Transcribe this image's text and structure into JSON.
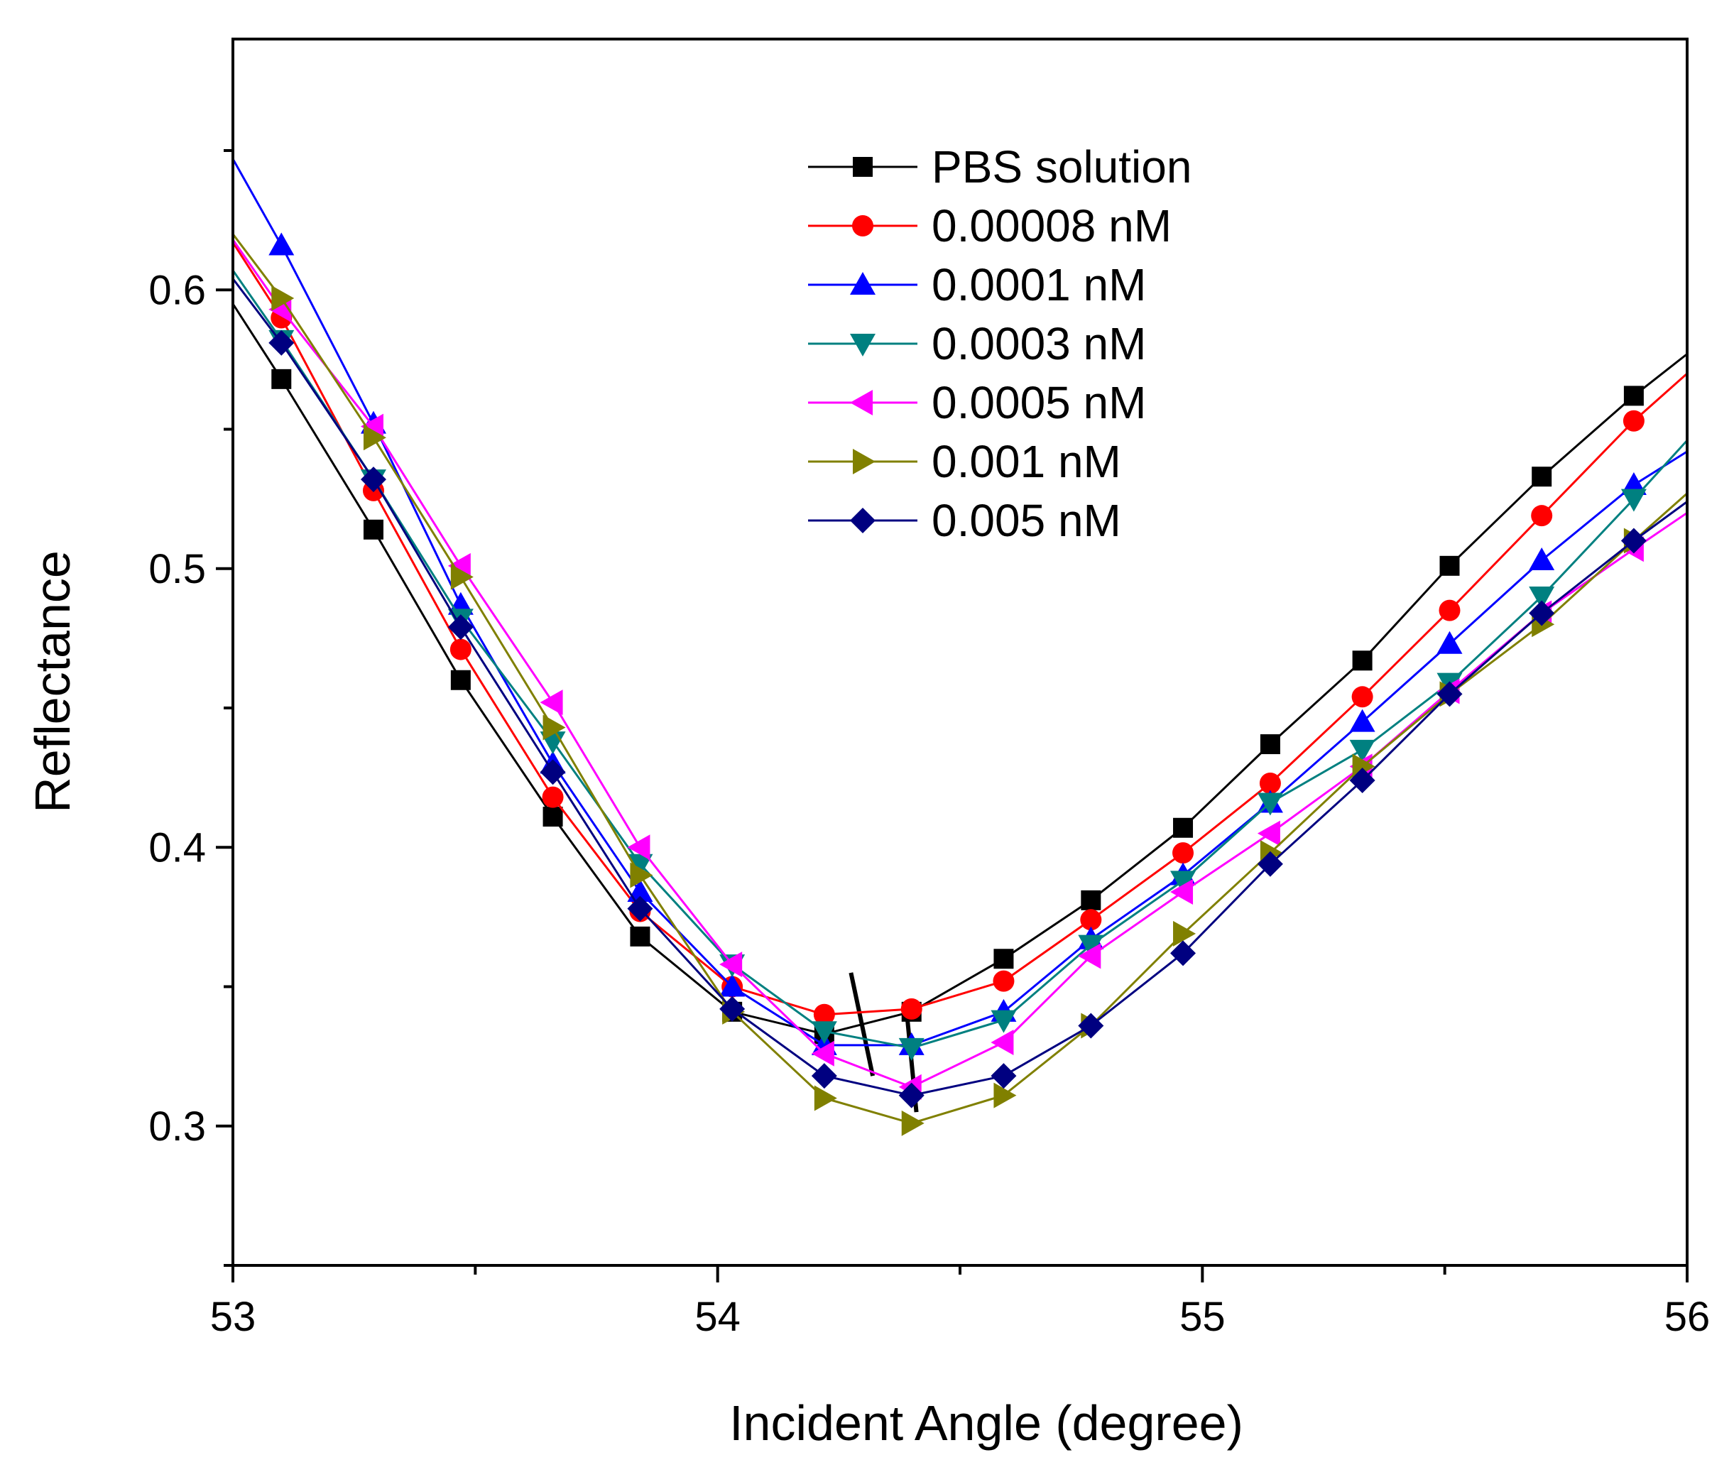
{
  "chart_data": {
    "type": "line",
    "title": "",
    "xlabel": "Incident Angle (degree)",
    "ylabel": "Reflectance",
    "xlim": [
      53,
      56
    ],
    "ylim": [
      0.25,
      0.69
    ],
    "x_ticks": [
      {
        "value": 53,
        "label": "53"
      },
      {
        "value": 54,
        "label": "54"
      },
      {
        "value": 55,
        "label": "55"
      },
      {
        "value": 56,
        "label": "56"
      }
    ],
    "x_minor_ticks": [
      53.5,
      54.5,
      55.5
    ],
    "y_ticks": [
      {
        "value": 0.3,
        "label": "0.3"
      },
      {
        "value": 0.4,
        "label": "0.4"
      },
      {
        "value": 0.5,
        "label": "0.5"
      },
      {
        "value": 0.6,
        "label": "0.6"
      }
    ],
    "y_minor_ticks": [
      0.25,
      0.35,
      0.45,
      0.55,
      0.65
    ],
    "grid": false,
    "legend_position": "top-center",
    "series": [
      {
        "name": "PBS solution",
        "color": "#000000",
        "marker": "square",
        "line_x": [
          53,
          53.1,
          53.29,
          53.47,
          53.66,
          53.84,
          54.03,
          54.22,
          54.4,
          54.59,
          54.77,
          54.96,
          55.14,
          55.33,
          55.51,
          55.7,
          55.89,
          56
        ],
        "line_y": [
          0.595,
          0.568,
          0.514,
          0.46,
          0.411,
          0.368,
          0.341,
          0.333,
          0.341,
          0.36,
          0.381,
          0.407,
          0.437,
          0.467,
          0.501,
          0.533,
          0.562,
          0.577
        ],
        "marker_x": [
          53.1,
          53.29,
          53.47,
          53.66,
          53.84,
          54.03,
          54.22,
          54.4,
          54.59,
          54.77,
          54.96,
          55.14,
          55.33,
          55.51,
          55.7,
          55.89
        ],
        "marker_y": [
          0.568,
          0.514,
          0.46,
          0.411,
          0.368,
          0.341,
          0.333,
          0.341,
          0.36,
          0.381,
          0.407,
          0.437,
          0.467,
          0.501,
          0.533,
          0.562
        ]
      },
      {
        "name": "0.00008 nM",
        "color": "#ff0000",
        "marker": "circle",
        "line_x": [
          53,
          53.1,
          53.29,
          53.47,
          53.66,
          53.84,
          54.03,
          54.22,
          54.4,
          54.59,
          54.77,
          54.96,
          55.14,
          55.33,
          55.51,
          55.7,
          55.89,
          56
        ],
        "line_y": [
          0.617,
          0.59,
          0.528,
          0.471,
          0.418,
          0.377,
          0.35,
          0.34,
          0.342,
          0.352,
          0.374,
          0.398,
          0.423,
          0.454,
          0.485,
          0.519,
          0.553,
          0.57
        ],
        "marker_x": [
          53.1,
          53.29,
          53.47,
          53.66,
          53.84,
          54.03,
          54.22,
          54.4,
          54.59,
          54.77,
          54.96,
          55.14,
          55.33,
          55.51,
          55.7,
          55.89
        ],
        "marker_y": [
          0.59,
          0.528,
          0.471,
          0.418,
          0.377,
          0.35,
          0.34,
          0.342,
          0.352,
          0.374,
          0.398,
          0.423,
          0.454,
          0.485,
          0.519,
          0.553
        ]
      },
      {
        "name": "0.0001 nM",
        "color": "#0000ff",
        "marker": "triangle-up",
        "line_x": [
          53,
          53.1,
          53.29,
          53.47,
          53.66,
          53.84,
          54.03,
          54.22,
          54.4,
          54.59,
          54.77,
          54.96,
          55.14,
          55.33,
          55.51,
          55.7,
          55.89,
          56
        ],
        "line_y": [
          0.647,
          0.616,
          0.552,
          0.487,
          0.43,
          0.384,
          0.35,
          0.329,
          0.329,
          0.341,
          0.367,
          0.39,
          0.416,
          0.445,
          0.473,
          0.503,
          0.53,
          0.542
        ],
        "marker_x": [
          53.1,
          53.29,
          53.47,
          53.66,
          53.84,
          54.03,
          54.22,
          54.4,
          54.59,
          54.77,
          54.96,
          55.14,
          55.33,
          55.51,
          55.7,
          55.89
        ],
        "marker_y": [
          0.616,
          0.552,
          0.487,
          0.43,
          0.384,
          0.35,
          0.329,
          0.329,
          0.341,
          0.367,
          0.39,
          0.416,
          0.445,
          0.473,
          0.503,
          0.53
        ]
      },
      {
        "name": "0.0003 nM",
        "color": "#008080",
        "marker": "triangle-down",
        "line_x": [
          53,
          53.1,
          53.29,
          53.47,
          53.66,
          53.84,
          54.03,
          54.22,
          54.4,
          54.59,
          54.77,
          54.96,
          55.14,
          55.33,
          55.51,
          55.7,
          55.89,
          56
        ],
        "line_y": [
          0.607,
          0.582,
          0.532,
          0.482,
          0.438,
          0.394,
          0.358,
          0.334,
          0.328,
          0.338,
          0.365,
          0.388,
          0.416,
          0.435,
          0.459,
          0.49,
          0.525,
          0.546
        ],
        "marker_x": [
          53.1,
          53.29,
          53.47,
          53.66,
          53.84,
          54.03,
          54.22,
          54.4,
          54.59,
          54.77,
          54.96,
          55.14,
          55.33,
          55.51,
          55.7,
          55.89
        ],
        "marker_y": [
          0.582,
          0.532,
          0.482,
          0.438,
          0.394,
          0.358,
          0.334,
          0.328,
          0.338,
          0.365,
          0.388,
          0.416,
          0.435,
          0.459,
          0.49,
          0.525
        ]
      },
      {
        "name": "0.0005 nM",
        "color": "#ff00ff",
        "marker": "triangle-left",
        "line_x": [
          53,
          53.1,
          53.29,
          53.47,
          53.66,
          53.84,
          54.03,
          54.22,
          54.4,
          54.59,
          54.77,
          54.96,
          55.14,
          55.33,
          55.51,
          55.7,
          55.89,
          56
        ],
        "line_y": [
          0.618,
          0.593,
          0.551,
          0.501,
          0.452,
          0.4,
          0.358,
          0.326,
          0.314,
          0.33,
          0.361,
          0.384,
          0.405,
          0.429,
          0.456,
          0.484,
          0.507,
          0.52
        ],
        "marker_x": [
          53.1,
          53.29,
          53.47,
          53.66,
          53.84,
          54.03,
          54.22,
          54.4,
          54.59,
          54.77,
          54.96,
          55.14,
          55.33,
          55.51,
          55.7,
          55.89
        ],
        "marker_y": [
          0.593,
          0.551,
          0.501,
          0.452,
          0.4,
          0.358,
          0.326,
          0.314,
          0.33,
          0.361,
          0.384,
          0.405,
          0.429,
          0.456,
          0.484,
          0.507
        ]
      },
      {
        "name": "0.001 nM",
        "color": "#808000",
        "marker": "triangle-right",
        "line_x": [
          53,
          53.1,
          53.29,
          53.47,
          53.66,
          53.84,
          54.03,
          54.22,
          54.4,
          54.59,
          54.77,
          54.96,
          55.14,
          55.33,
          55.51,
          55.7,
          55.89,
          56
        ],
        "line_y": [
          0.62,
          0.597,
          0.547,
          0.497,
          0.443,
          0.39,
          0.341,
          0.31,
          0.301,
          0.311,
          0.336,
          0.369,
          0.398,
          0.429,
          0.455,
          0.48,
          0.51,
          0.527
        ],
        "marker_x": [
          53.1,
          53.29,
          53.47,
          53.66,
          53.84,
          54.03,
          54.22,
          54.4,
          54.59,
          54.77,
          54.96,
          55.14,
          55.33,
          55.51,
          55.7,
          55.89
        ],
        "marker_y": [
          0.597,
          0.547,
          0.497,
          0.443,
          0.39,
          0.341,
          0.31,
          0.301,
          0.311,
          0.336,
          0.369,
          0.398,
          0.429,
          0.455,
          0.48,
          0.51
        ]
      },
      {
        "name": "0.005 nM",
        "color": "#000080",
        "marker": "diamond",
        "line_x": [
          53,
          53.1,
          53.29,
          53.47,
          53.66,
          53.84,
          54.03,
          54.22,
          54.4,
          54.59,
          54.77,
          54.96,
          55.14,
          55.33,
          55.51,
          55.7,
          55.89,
          56
        ],
        "line_y": [
          0.604,
          0.581,
          0.532,
          0.479,
          0.427,
          0.378,
          0.342,
          0.318,
          0.311,
          0.318,
          0.336,
          0.362,
          0.394,
          0.424,
          0.455,
          0.484,
          0.51,
          0.524
        ],
        "marker_x": [
          53.1,
          53.29,
          53.47,
          53.66,
          53.84,
          54.03,
          54.22,
          54.4,
          54.59,
          54.77,
          54.96,
          55.14,
          55.33,
          55.51,
          55.7,
          55.89
        ],
        "marker_y": [
          0.581,
          0.532,
          0.479,
          0.427,
          0.378,
          0.342,
          0.318,
          0.311,
          0.318,
          0.336,
          0.362,
          0.394,
          0.424,
          0.455,
          0.484,
          0.51
        ]
      }
    ],
    "annotations": [
      {
        "type": "line",
        "color": "#000000",
        "x1": 54.275,
        "y1": 0.355,
        "x2": 54.32,
        "y2": 0.318
      },
      {
        "type": "line",
        "color": "#000000",
        "x1": 54.39,
        "y1": 0.341,
        "x2": 54.41,
        "y2": 0.305
      }
    ]
  }
}
